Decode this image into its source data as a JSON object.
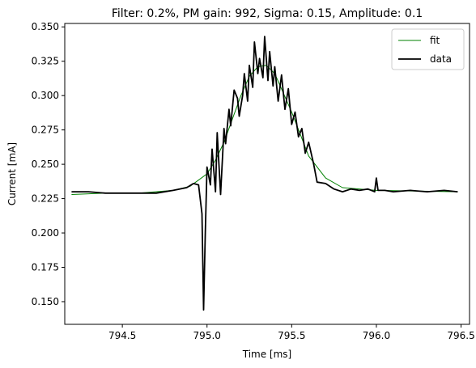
{
  "chart_data": {
    "type": "line",
    "title": "Filter: 0.2%, PM gain: 992, Sigma: 0.15, Amplitude: 0.1",
    "xlabel": "Time [ms]",
    "ylabel": "Current [mA]",
    "xlim": [
      794.16,
      796.55
    ],
    "ylim": [
      0.1335,
      0.3525
    ],
    "xticks": [
      "794.5",
      "795.0",
      "795.5",
      "796.0",
      "796.5"
    ],
    "yticks": [
      "0.150",
      "0.175",
      "0.200",
      "0.225",
      "0.250",
      "0.275",
      "0.300",
      "0.325",
      "0.350"
    ],
    "grid": false,
    "legend_position": "top-right",
    "series": [
      {
        "name": "fit",
        "color": "#008000",
        "x": [
          794.2,
          794.4,
          794.6,
          794.8,
          794.9,
          795.0,
          795.05,
          795.1,
          795.15,
          795.2,
          795.25,
          795.3,
          795.35,
          795.4,
          795.45,
          795.5,
          795.55,
          795.6,
          795.7,
          795.8,
          796.0,
          796.48
        ],
        "y": [
          0.228,
          0.229,
          0.229,
          0.231,
          0.234,
          0.243,
          0.253,
          0.266,
          0.283,
          0.3,
          0.314,
          0.321,
          0.322,
          0.316,
          0.302,
          0.288,
          0.272,
          0.256,
          0.24,
          0.233,
          0.231,
          0.23
        ]
      },
      {
        "name": "data",
        "color": "#000000",
        "x": [
          794.2,
          794.3,
          794.4,
          794.5,
          794.6,
          794.7,
          794.8,
          794.88,
          794.92,
          794.95,
          794.97,
          794.98,
          794.99,
          795.0,
          795.02,
          795.03,
          795.05,
          795.06,
          795.08,
          795.1,
          795.11,
          795.13,
          795.14,
          795.16,
          795.18,
          795.19,
          795.21,
          795.22,
          795.24,
          795.25,
          795.27,
          795.28,
          795.3,
          795.31,
          795.33,
          795.34,
          795.36,
          795.37,
          795.39,
          795.4,
          795.42,
          795.44,
          795.46,
          795.48,
          795.5,
          795.52,
          795.54,
          795.56,
          795.58,
          795.6,
          795.63,
          795.65,
          795.7,
          795.75,
          795.8,
          795.85,
          795.9,
          795.95,
          795.99,
          796.0,
          796.01,
          796.05,
          796.1,
          796.2,
          796.3,
          796.4,
          796.48
        ],
        "y": [
          0.23,
          0.23,
          0.229,
          0.229,
          0.229,
          0.229,
          0.231,
          0.233,
          0.236,
          0.235,
          0.214,
          0.144,
          0.2,
          0.248,
          0.235,
          0.261,
          0.23,
          0.273,
          0.228,
          0.276,
          0.265,
          0.29,
          0.278,
          0.304,
          0.298,
          0.285,
          0.3,
          0.316,
          0.296,
          0.322,
          0.306,
          0.339,
          0.316,
          0.327,
          0.313,
          0.343,
          0.311,
          0.332,
          0.307,
          0.321,
          0.296,
          0.315,
          0.29,
          0.305,
          0.279,
          0.288,
          0.27,
          0.276,
          0.258,
          0.266,
          0.25,
          0.237,
          0.236,
          0.232,
          0.23,
          0.232,
          0.231,
          0.232,
          0.23,
          0.24,
          0.231,
          0.231,
          0.23,
          0.231,
          0.23,
          0.231,
          0.23
        ]
      }
    ]
  }
}
